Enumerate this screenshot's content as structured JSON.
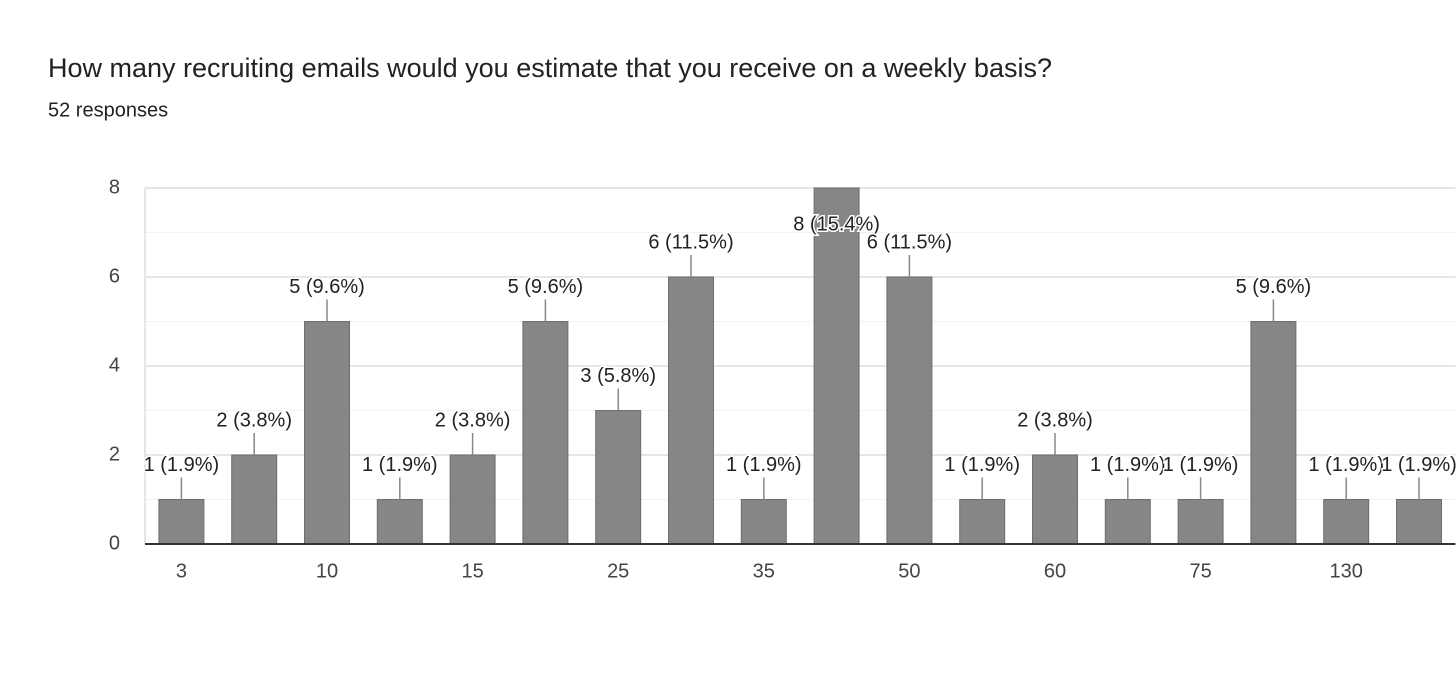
{
  "chart_data": {
    "type": "bar",
    "title": "How many recruiting emails would you estimate that you receive on a weekly basis?",
    "subtitle": "52 responses",
    "categories": [
      "3",
      null,
      "10",
      null,
      "15",
      null,
      "25",
      null,
      "35",
      null,
      "50",
      null,
      "60",
      null,
      "75",
      null,
      "130",
      null
    ],
    "values": [
      1,
      2,
      5,
      1,
      2,
      5,
      3,
      6,
      1,
      8,
      6,
      1,
      2,
      1,
      1,
      5,
      1,
      1
    ],
    "value_labels": [
      "1 (1.9%)",
      "2 (3.8%)",
      "5 (9.6%)",
      "1 (1.9%)",
      "2 (3.8%)",
      "5 (9.6%)",
      "3 (5.8%)",
      "6 (11.5%)",
      "1 (1.9%)",
      "8 (15.4%)",
      "6 (11.5%)",
      "1 (1.9%)",
      "2 (3.8%)",
      "1 (1.9%)",
      "1 (1.9%)",
      "5 (9.6%)",
      "1 (1.9%)",
      "1 (1.9%)"
    ],
    "color": "#868686",
    "ylim": [
      0,
      8
    ],
    "yticks": [
      0,
      2,
      4,
      6,
      8
    ],
    "minor_yticks": [
      1,
      3,
      5,
      7
    ],
    "grid": true
  }
}
